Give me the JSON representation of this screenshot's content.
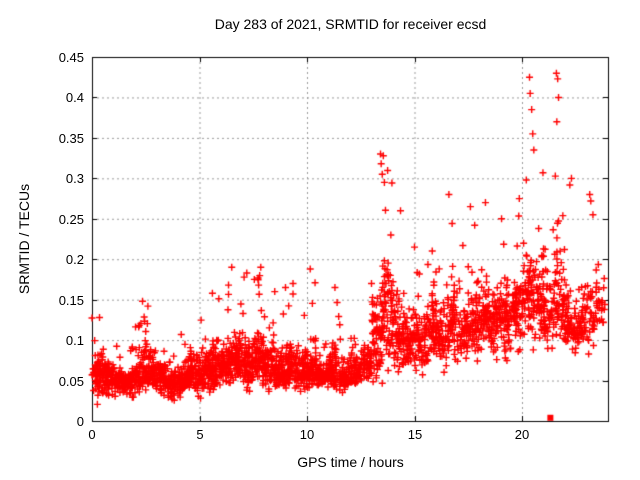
{
  "title": "Day 283 of 2021, SRMTID for receiver ecsd",
  "chart_data": {
    "type": "scatter",
    "title": "Day 283 of 2021, SRMTID for receiver ecsd",
    "xlabel": "GPS time / hours",
    "ylabel": "SRMTID / TECUs",
    "xlim": [
      0,
      24
    ],
    "ylim": [
      0,
      0.45
    ],
    "xticks": [
      0,
      5,
      10,
      15,
      20
    ],
    "xtick_labels": [
      "0",
      "5",
      "10",
      "15",
      "20"
    ],
    "yticks": [
      0,
      0.05,
      0.1,
      0.15,
      0.2,
      0.25,
      0.3,
      0.35,
      0.4,
      0.45
    ],
    "ytick_labels": [
      "0",
      "0.05",
      "0.1",
      "0.15",
      "0.2",
      "0.25",
      "0.3",
      "0.35",
      "0.4",
      "0.45"
    ],
    "grid": true,
    "legend": "none",
    "colors": {
      "marker": "#ff0000",
      "grid": "#9a9a9a",
      "axis": "#000000",
      "text": "#000000",
      "background": "#ffffff"
    },
    "marker": {
      "shape": "plus",
      "size": 7
    },
    "seed": 7,
    "epoch_step_hours": 0.025,
    "series": [
      {
        "name": "SRMTID",
        "marker": "plus",
        "color": "#ff0000",
        "bands": [
          [
            0.0,
            0.5,
            0.018,
            0.055,
            0.13,
            70
          ],
          [
            0.5,
            1.0,
            0.02,
            0.055,
            0.105,
            70
          ],
          [
            1.0,
            1.5,
            0.025,
            0.05,
            0.1,
            65
          ],
          [
            1.5,
            2.0,
            0.02,
            0.05,
            0.095,
            65
          ],
          [
            2.0,
            2.5,
            0.025,
            0.06,
            0.15,
            70
          ],
          [
            2.5,
            3.0,
            0.025,
            0.06,
            0.14,
            75
          ],
          [
            3.0,
            3.5,
            0.02,
            0.055,
            0.12,
            70
          ],
          [
            3.5,
            4.0,
            0.02,
            0.045,
            0.1,
            65
          ],
          [
            4.0,
            4.5,
            0.02,
            0.05,
            0.11,
            65
          ],
          [
            4.5,
            5.0,
            0.025,
            0.06,
            0.13,
            70
          ],
          [
            5.0,
            5.5,
            0.025,
            0.06,
            0.14,
            70
          ],
          [
            5.5,
            6.0,
            0.03,
            0.065,
            0.16,
            75
          ],
          [
            6.0,
            6.5,
            0.03,
            0.07,
            0.17,
            75
          ],
          [
            6.5,
            7.0,
            0.035,
            0.075,
            0.185,
            75
          ],
          [
            7.0,
            7.5,
            0.03,
            0.07,
            0.18,
            75
          ],
          [
            7.5,
            8.0,
            0.035,
            0.075,
            0.19,
            80
          ],
          [
            8.0,
            8.5,
            0.03,
            0.065,
            0.16,
            70
          ],
          [
            8.5,
            9.0,
            0.03,
            0.06,
            0.14,
            70
          ],
          [
            9.0,
            9.5,
            0.03,
            0.065,
            0.165,
            70
          ],
          [
            9.5,
            10.0,
            0.025,
            0.06,
            0.15,
            70
          ],
          [
            10.0,
            10.5,
            0.03,
            0.06,
            0.18,
            70
          ],
          [
            10.5,
            11.0,
            0.03,
            0.055,
            0.12,
            65
          ],
          [
            11.0,
            11.5,
            0.03,
            0.06,
            0.165,
            70
          ],
          [
            11.5,
            12.0,
            0.03,
            0.055,
            0.12,
            65
          ],
          [
            12.0,
            12.5,
            0.03,
            0.06,
            0.13,
            60
          ],
          [
            12.5,
            13.0,
            0.035,
            0.07,
            0.145,
            55
          ],
          [
            13.0,
            13.5,
            0.015,
            0.11,
            0.3,
            70
          ],
          [
            13.5,
            14.0,
            0.015,
            0.14,
            0.33,
            75
          ],
          [
            14.0,
            14.5,
            0.05,
            0.11,
            0.26,
            60
          ],
          [
            14.5,
            15.0,
            0.045,
            0.1,
            0.2,
            55
          ],
          [
            15.0,
            15.5,
            0.05,
            0.1,
            0.22,
            55
          ],
          [
            15.5,
            16.0,
            0.05,
            0.11,
            0.25,
            60
          ],
          [
            16.0,
            16.5,
            0.05,
            0.1,
            0.22,
            55
          ],
          [
            16.5,
            17.0,
            0.055,
            0.12,
            0.28,
            60
          ],
          [
            17.0,
            17.5,
            0.055,
            0.11,
            0.22,
            55
          ],
          [
            17.5,
            18.0,
            0.06,
            0.12,
            0.27,
            60
          ],
          [
            18.0,
            18.5,
            0.06,
            0.13,
            0.25,
            60
          ],
          [
            18.5,
            19.0,
            0.055,
            0.12,
            0.24,
            60
          ],
          [
            19.0,
            19.5,
            0.06,
            0.13,
            0.26,
            65
          ],
          [
            19.5,
            20.0,
            0.07,
            0.14,
            0.28,
            65
          ],
          [
            20.0,
            20.5,
            0.08,
            0.16,
            0.4,
            65
          ],
          [
            20.5,
            21.0,
            0.075,
            0.15,
            0.34,
            60
          ],
          [
            21.0,
            21.5,
            0.065,
            0.13,
            0.28,
            55
          ],
          [
            21.5,
            22.0,
            0.075,
            0.15,
            0.43,
            60
          ],
          [
            22.0,
            22.5,
            0.065,
            0.12,
            0.3,
            55
          ],
          [
            22.5,
            23.0,
            0.065,
            0.12,
            0.28,
            50
          ],
          [
            23.0,
            23.5,
            0.075,
            0.13,
            0.28,
            40
          ],
          [
            23.5,
            23.85,
            0.09,
            0.14,
            0.27,
            20
          ]
        ],
        "spikes": [
          [
            0.35,
            0.128
          ],
          [
            2.35,
            0.148
          ],
          [
            2.6,
            0.142
          ],
          [
            5.6,
            0.158
          ],
          [
            6.35,
            0.168
          ],
          [
            6.5,
            0.19
          ],
          [
            7.2,
            0.183
          ],
          [
            7.75,
            0.168
          ],
          [
            7.85,
            0.19
          ],
          [
            8.5,
            0.16
          ],
          [
            9.0,
            0.165
          ],
          [
            9.35,
            0.17
          ],
          [
            10.15,
            0.188
          ],
          [
            11.3,
            0.165
          ],
          [
            13.42,
            0.33
          ],
          [
            13.45,
            0.318
          ],
          [
            13.5,
            0.305
          ],
          [
            13.55,
            0.328
          ],
          [
            13.6,
            0.295
          ],
          [
            14.35,
            0.26
          ],
          [
            15.0,
            0.215
          ],
          [
            16.6,
            0.28
          ],
          [
            17.6,
            0.265
          ],
          [
            18.3,
            0.27
          ],
          [
            19.05,
            0.25
          ],
          [
            20.35,
            0.425
          ],
          [
            20.38,
            0.405
          ],
          [
            20.45,
            0.385
          ],
          [
            20.5,
            0.355
          ],
          [
            20.55,
            0.335
          ],
          [
            21.6,
            0.43
          ],
          [
            21.66,
            0.423
          ],
          [
            21.7,
            0.4
          ],
          [
            21.62,
            0.37
          ],
          [
            22.3,
            0.3
          ],
          [
            23.15,
            0.28
          ],
          [
            23.2,
            0.272
          ]
        ]
      },
      {
        "name": "flag",
        "marker": "square",
        "color": "#ff0000",
        "points": [
          [
            21.32,
            0.004
          ]
        ]
      }
    ]
  }
}
